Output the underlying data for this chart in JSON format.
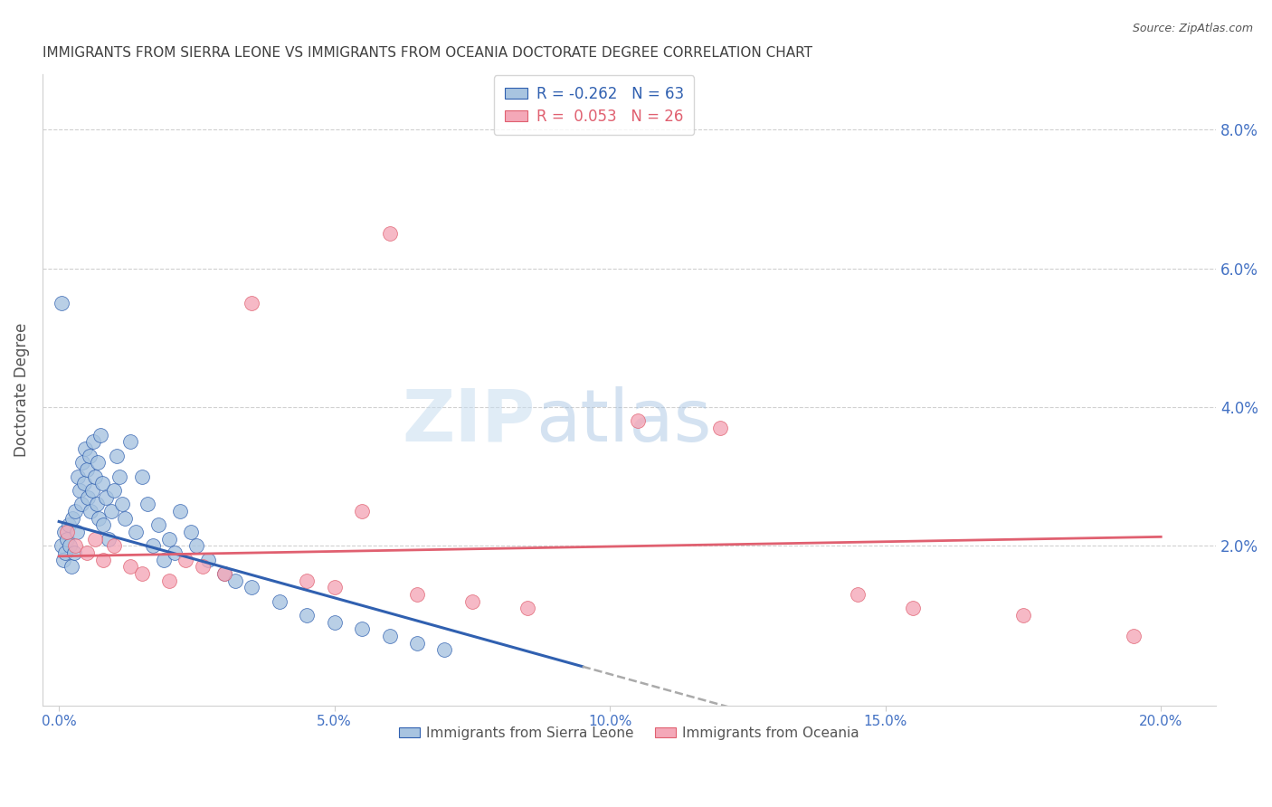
{
  "title": "IMMIGRANTS FROM SIERRA LEONE VS IMMIGRANTS FROM OCEANIA DOCTORATE DEGREE CORRELATION CHART",
  "source": "Source: ZipAtlas.com",
  "ylabel": "Doctorate Degree",
  "x_tick_labels": [
    "0.0%",
    "5.0%",
    "10.0%",
    "15.0%",
    "20.0%"
  ],
  "x_tick_positions": [
    0.0,
    5.0,
    10.0,
    15.0,
    20.0
  ],
  "y_tick_labels": [
    "2.0%",
    "4.0%",
    "6.0%",
    "8.0%"
  ],
  "y_tick_positions": [
    2.0,
    4.0,
    6.0,
    8.0
  ],
  "ylim": [
    -0.3,
    8.8
  ],
  "xlim": [
    -0.3,
    21.0
  ],
  "color_blue": "#a8c4e0",
  "color_pink": "#f4a8b8",
  "color_line_blue": "#3060b0",
  "color_line_pink": "#e06070",
  "color_axis_labels": "#4472c4",
  "color_title": "#404040",
  "color_grid": "#d0d0d0",
  "sierra_leone_x": [
    0.05,
    0.08,
    0.1,
    0.12,
    0.15,
    0.18,
    0.2,
    0.22,
    0.25,
    0.28,
    0.3,
    0.32,
    0.35,
    0.38,
    0.4,
    0.42,
    0.45,
    0.48,
    0.5,
    0.52,
    0.55,
    0.58,
    0.6,
    0.62,
    0.65,
    0.68,
    0.7,
    0.72,
    0.75,
    0.78,
    0.8,
    0.85,
    0.9,
    0.95,
    1.0,
    1.05,
    1.1,
    1.15,
    1.2,
    1.3,
    1.4,
    1.5,
    1.6,
    1.7,
    1.8,
    1.9,
    2.0,
    2.1,
    2.2,
    2.4,
    2.5,
    2.7,
    3.0,
    3.2,
    3.5,
    4.0,
    4.5,
    5.0,
    5.5,
    6.0,
    6.5,
    7.0,
    0.05
  ],
  "sierra_leone_y": [
    2.0,
    1.8,
    2.2,
    1.9,
    2.1,
    2.3,
    2.0,
    1.7,
    2.4,
    1.9,
    2.5,
    2.2,
    3.0,
    2.8,
    2.6,
    3.2,
    2.9,
    3.4,
    3.1,
    2.7,
    3.3,
    2.5,
    2.8,
    3.5,
    3.0,
    2.6,
    3.2,
    2.4,
    3.6,
    2.9,
    2.3,
    2.7,
    2.1,
    2.5,
    2.8,
    3.3,
    3.0,
    2.6,
    2.4,
    3.5,
    2.2,
    3.0,
    2.6,
    2.0,
    2.3,
    1.8,
    2.1,
    1.9,
    2.5,
    2.2,
    2.0,
    1.8,
    1.6,
    1.5,
    1.4,
    1.2,
    1.0,
    0.9,
    0.8,
    0.7,
    0.6,
    0.5,
    5.5
  ],
  "oceania_x": [
    0.15,
    0.3,
    0.5,
    0.65,
    0.8,
    1.0,
    1.3,
    1.5,
    2.0,
    2.3,
    2.6,
    3.0,
    3.5,
    4.5,
    5.0,
    5.5,
    6.5,
    7.5,
    8.5,
    10.5,
    12.0,
    14.5,
    15.5,
    17.5,
    19.5,
    6.0
  ],
  "oceania_y": [
    2.2,
    2.0,
    1.9,
    2.1,
    1.8,
    2.0,
    1.7,
    1.6,
    1.5,
    1.8,
    1.7,
    1.6,
    5.5,
    1.5,
    1.4,
    2.5,
    1.3,
    1.2,
    1.1,
    3.8,
    3.7,
    1.3,
    1.1,
    1.0,
    0.7,
    6.5
  ],
  "sl_reg_slope": -0.22,
  "sl_reg_intercept": 2.35,
  "oc_reg_slope": 0.014,
  "oc_reg_intercept": 1.85,
  "sl_solid_x_end": 9.5,
  "sl_dashed_x_end": 14.5,
  "watermark_text": "ZIPatlas"
}
